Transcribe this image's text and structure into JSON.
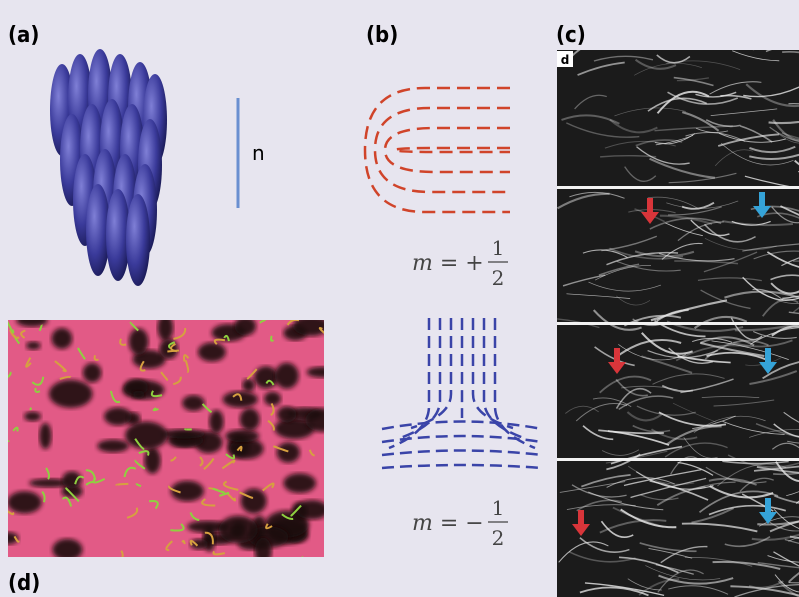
{
  "panels": {
    "a": "(a)",
    "b": "(b)",
    "c": "(c)",
    "d": "(d)"
  },
  "director_label": "n",
  "inset_label": "d",
  "equations": [
    {
      "lhs": "m = +",
      "numerator": "1",
      "denominator": "2"
    },
    {
      "lhs": "m = −",
      "numerator": "1",
      "denominator": "2"
    }
  ]
}
